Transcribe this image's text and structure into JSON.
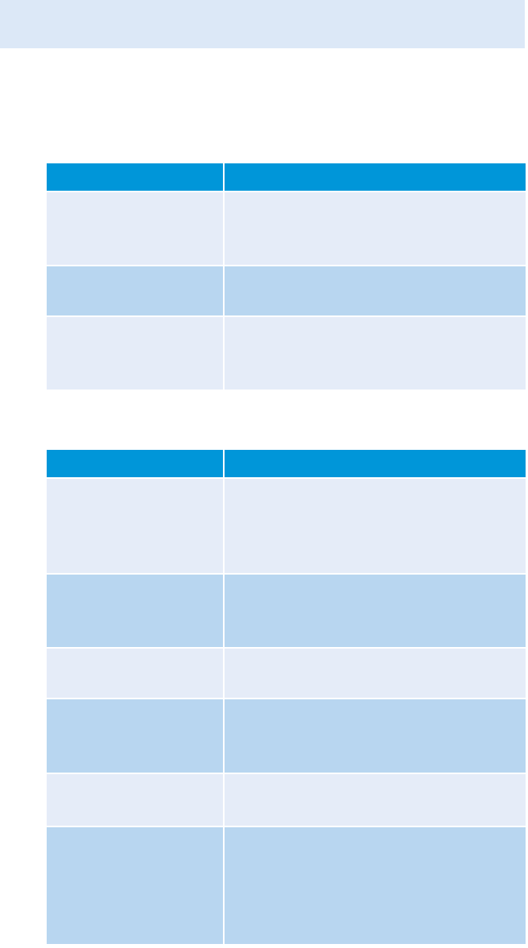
{
  "colors": {
    "top_band": "#dce8f7",
    "header": "#0096d9",
    "row_light": "#e5ecf8",
    "row_dark": "#b8d6f0"
  },
  "tables": [
    {
      "header": [
        "",
        ""
      ],
      "rows": [
        {
          "cells": [
            "",
            ""
          ],
          "shade": "light"
        },
        {
          "cells": [
            "",
            ""
          ],
          "shade": "dark"
        },
        {
          "cells": [
            "",
            ""
          ],
          "shade": "light"
        }
      ]
    },
    {
      "header": [
        "",
        ""
      ],
      "rows": [
        {
          "cells": [
            "",
            ""
          ],
          "shade": "light"
        },
        {
          "cells": [
            "",
            ""
          ],
          "shade": "dark"
        },
        {
          "cells": [
            "",
            ""
          ],
          "shade": "light"
        },
        {
          "cells": [
            "",
            ""
          ],
          "shade": "dark"
        },
        {
          "cells": [
            "",
            ""
          ],
          "shade": "light"
        },
        {
          "cells": [
            "",
            ""
          ],
          "shade": "dark"
        }
      ]
    }
  ]
}
